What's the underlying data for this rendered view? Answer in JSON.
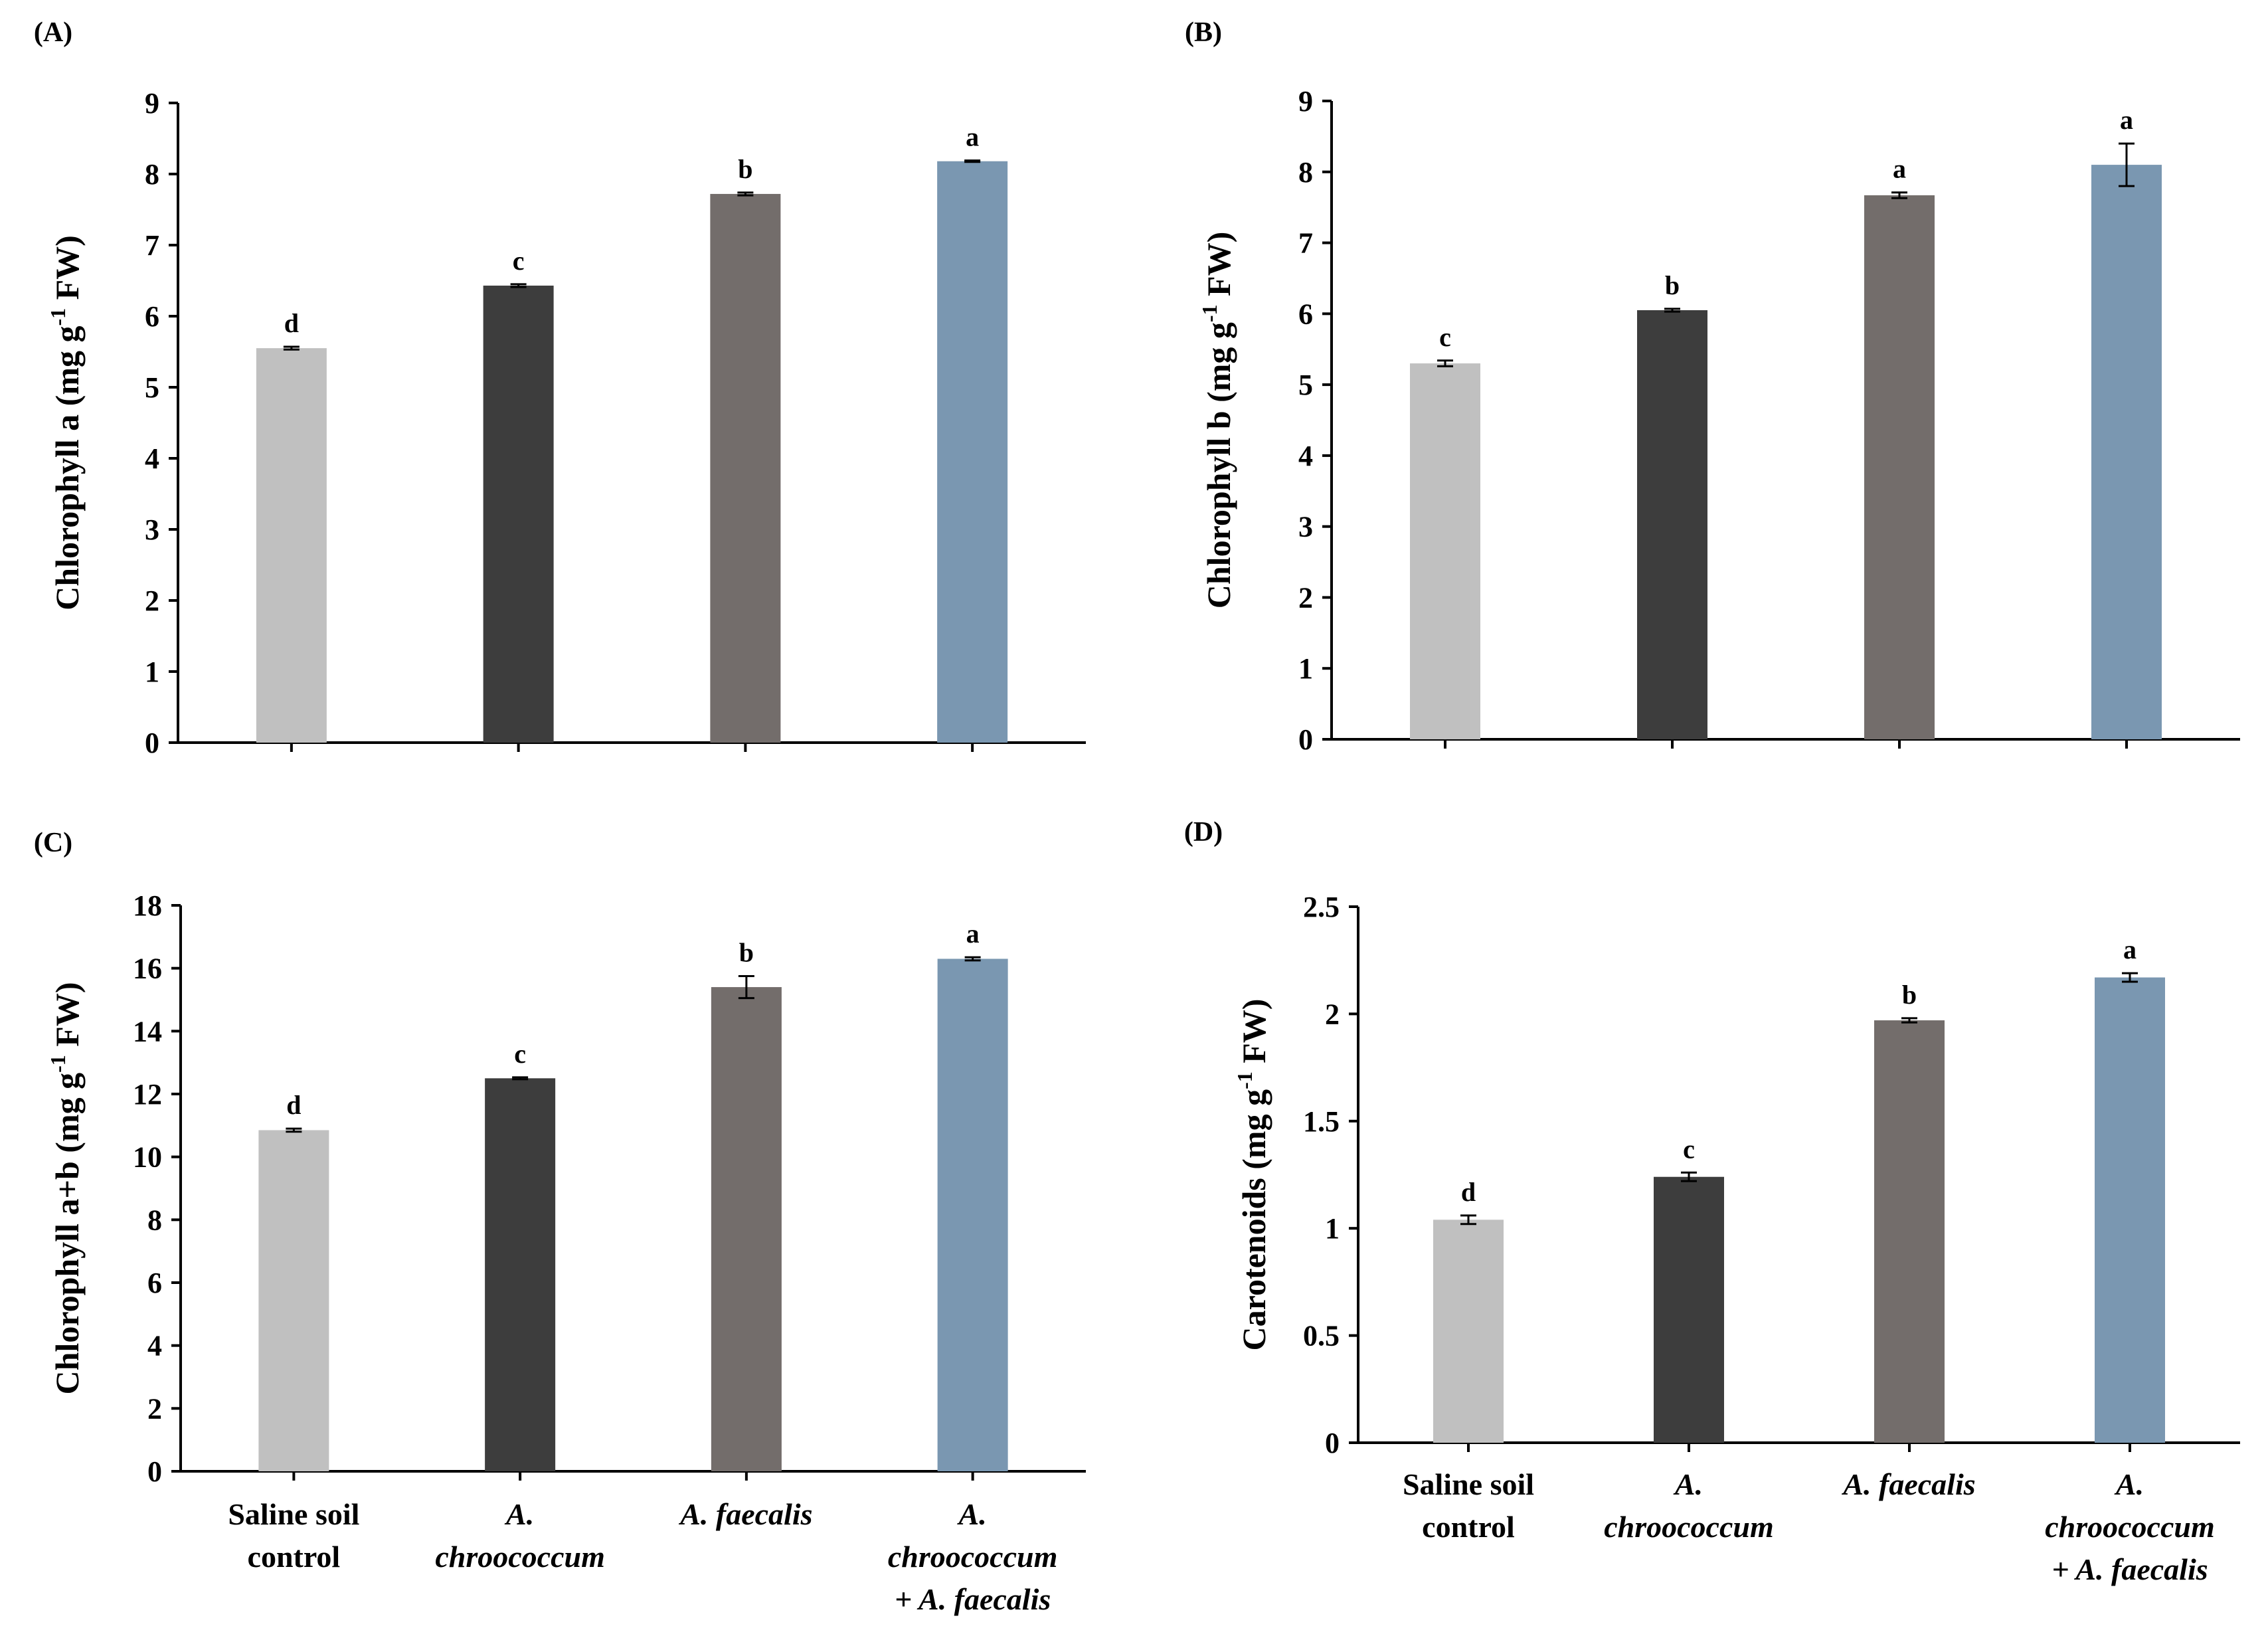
{
  "figure": {
    "categories": [
      "Saline soil control",
      "A. chroococcum",
      "A. faecalis",
      "A. chroococcum + A. faecalis"
    ],
    "category_lines": [
      [
        {
          "text": "Saline soil",
          "italic": false
        },
        {
          "text": "control",
          "italic": false
        }
      ],
      [
        {
          "text": "A.",
          "italic": true
        },
        {
          "text": "chroococcum",
          "italic": true
        }
      ],
      [
        {
          "text": "A. faecalis",
          "italic": true
        }
      ],
      [
        {
          "text": "A.",
          "italic": true
        },
        {
          "text": "chroococcum",
          "italic": true
        },
        {
          "text": "+ A. faecalis",
          "italic": true
        }
      ]
    ],
    "bar_colors": [
      "#c0c0c0",
      "#3d3d3d",
      "#736d6b",
      "#7a97b1"
    ]
  },
  "chart_data": [
    {
      "type": "bar",
      "panel": "(A)",
      "ylabel": "Chlorophyll a (mg g-1 FW)",
      "ylabel_parts": {
        "pre": "Chlorophyll a (mg g",
        "sup": "-1",
        "post": " FW)"
      },
      "categories": [
        "Saline soil control",
        "A. chroococcum",
        "A. faecalis",
        "A. chroococcum + A. faecalis"
      ],
      "values": [
        5.55,
        6.43,
        7.72,
        8.18
      ],
      "errors": [
        0.02,
        0.02,
        0.02,
        0.01
      ],
      "significance": [
        "d",
        "c",
        "b",
        "a"
      ],
      "ylim": [
        0,
        9
      ],
      "yticks": [
        "0",
        "1",
        "2",
        "3",
        "4",
        "5",
        "6",
        "7",
        "8",
        "9"
      ],
      "show_category_labels": false
    },
    {
      "type": "bar",
      "panel": "(B)",
      "ylabel": "Chlorophyll b (mg g-1 FW)",
      "ylabel_parts": {
        "pre": "Chlorophyll b (mg g",
        "sup": "-1",
        "post": " FW)"
      },
      "categories": [
        "Saline soil control",
        "A. chroococcum",
        "A. faecalis",
        "A. chroococcum + A. faecalis"
      ],
      "values": [
        5.3,
        6.05,
        7.67,
        8.1
      ],
      "errors": [
        0.04,
        0.02,
        0.04,
        0.3
      ],
      "significance": [
        "c",
        "b",
        "a",
        "a"
      ],
      "ylim": [
        0,
        9
      ],
      "yticks": [
        "0",
        "1",
        "2",
        "3",
        "4",
        "5",
        "6",
        "7",
        "8",
        "9"
      ],
      "show_category_labels": false
    },
    {
      "type": "bar",
      "panel": "(C)",
      "ylabel": "Chlorophyll a+b (mg g-1 FW)",
      "ylabel_parts": {
        "pre": "Chlorophyll a+b (mg g",
        "sup": "-1",
        "post": " FW)"
      },
      "categories": [
        "Saline soil control",
        "A. chroococcum",
        "A. faecalis",
        "A. chroococcum + A. faecalis"
      ],
      "values": [
        10.85,
        12.5,
        15.4,
        16.3
      ],
      "errors": [
        0.05,
        0.03,
        0.35,
        0.05
      ],
      "significance": [
        "d",
        "c",
        "b",
        "a"
      ],
      "ylim": [
        0,
        18
      ],
      "yticks": [
        "0",
        "2",
        "4",
        "6",
        "8",
        "10",
        "12",
        "14",
        "16",
        "18"
      ],
      "show_category_labels": true
    },
    {
      "type": "bar",
      "panel": "(D)",
      "ylabel": "Carotenoids (mg g-1 FW)",
      "ylabel_parts": {
        "pre": "Carotenoids (mg g",
        "sup": "-1",
        "post": " FW)"
      },
      "categories": [
        "Saline soil control",
        "A. chroococcum",
        "A. faecalis",
        "A. chroococcum + A. faecalis"
      ],
      "values": [
        1.04,
        1.24,
        1.97,
        2.17
      ],
      "errors": [
        0.02,
        0.02,
        0.01,
        0.02
      ],
      "significance": [
        "d",
        "c",
        "b",
        "a"
      ],
      "ylim": [
        0,
        2.5
      ],
      "yticks": [
        "0",
        "0.5",
        "1",
        "1.5",
        "2",
        "2.5"
      ],
      "show_category_labels": true
    }
  ]
}
